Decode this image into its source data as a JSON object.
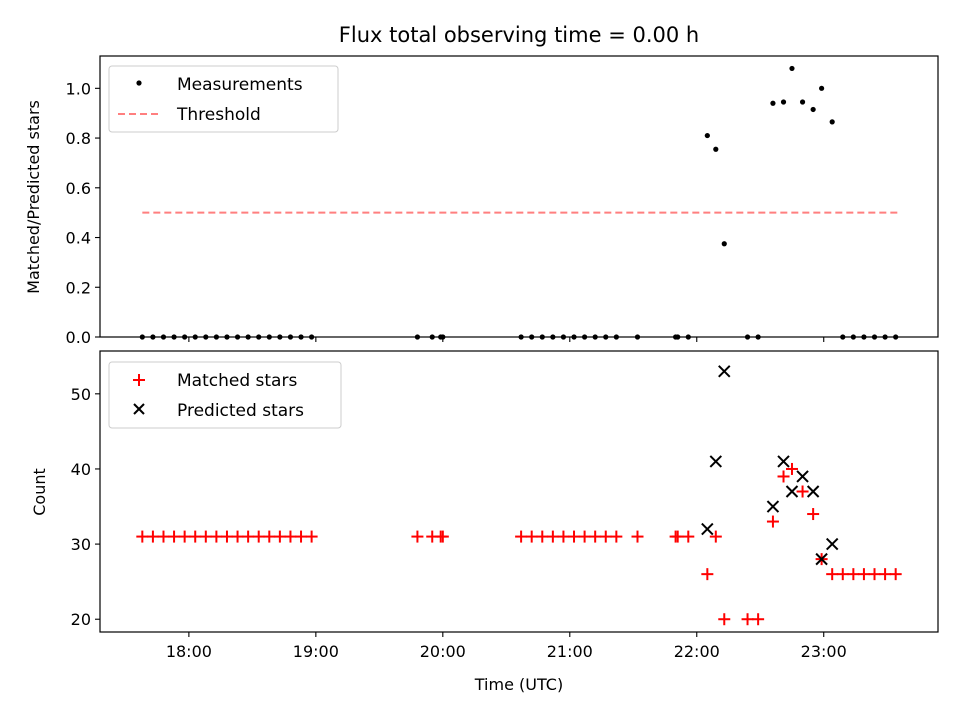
{
  "title": "Flux total observing time = 0.00 h",
  "colors": {
    "measure": "#000000",
    "threshold": "#ff7f7f",
    "matched": "#ff0000",
    "predicted": "#000000"
  },
  "chart_data": [
    {
      "type": "scatter",
      "ylabel": "Matched/Predicted stars",
      "xlim": [
        "17:18",
        "23:54"
      ],
      "ylim": [
        0,
        1.13
      ],
      "yticks": [
        "0.0",
        "0.2",
        "0.4",
        "0.6",
        "0.8",
        "1.0"
      ],
      "ytick_values": [
        0,
        0.2,
        0.4,
        0.6,
        0.8,
        1.0
      ],
      "legend_position": "top-left",
      "threshold": {
        "name": "Threshold",
        "y": 0.5,
        "x_range": [
          "17:38",
          "23:35"
        ]
      },
      "series": [
        {
          "name": "Measurements",
          "points": [
            [
              "17:38",
              0
            ],
            [
              "17:43",
              0
            ],
            [
              "17:48",
              0
            ],
            [
              "17:53",
              0
            ],
            [
              "17:58",
              0
            ],
            [
              "18:03",
              0
            ],
            [
              "18:08",
              0
            ],
            [
              "18:13",
              0
            ],
            [
              "18:18",
              0
            ],
            [
              "18:23",
              0
            ],
            [
              "18:28",
              0
            ],
            [
              "18:33",
              0
            ],
            [
              "18:38",
              0
            ],
            [
              "18:43",
              0
            ],
            [
              "18:48",
              0
            ],
            [
              "18:53",
              0
            ],
            [
              "18:58",
              0
            ],
            [
              "19:48",
              0
            ],
            [
              "19:55",
              0
            ],
            [
              "19:59",
              0
            ],
            [
              "20:00",
              0
            ],
            [
              "20:37",
              0
            ],
            [
              "20:42",
              0
            ],
            [
              "20:47",
              0
            ],
            [
              "20:52",
              0
            ],
            [
              "20:57",
              0
            ],
            [
              "21:02",
              0
            ],
            [
              "21:07",
              0
            ],
            [
              "21:12",
              0
            ],
            [
              "21:17",
              0
            ],
            [
              "21:22",
              0
            ],
            [
              "21:32",
              0
            ],
            [
              "21:50",
              0
            ],
            [
              "21:51",
              0
            ],
            [
              "21:56",
              0
            ],
            [
              "22:05",
              0.81
            ],
            [
              "22:09",
              0.755
            ],
            [
              "22:13",
              0.375
            ],
            [
              "22:24",
              0
            ],
            [
              "22:29",
              0
            ],
            [
              "22:36",
              0.94
            ],
            [
              "22:41",
              0.945
            ],
            [
              "22:45",
              1.08
            ],
            [
              "22:50",
              0.945
            ],
            [
              "22:55",
              0.915
            ],
            [
              "22:59",
              1.0
            ],
            [
              "23:04",
              0.865
            ],
            [
              "23:09",
              0
            ],
            [
              "23:14",
              0
            ],
            [
              "23:19",
              0
            ],
            [
              "23:24",
              0
            ],
            [
              "23:29",
              0
            ],
            [
              "23:34",
              0
            ]
          ]
        }
      ]
    },
    {
      "type": "scatter",
      "ylabel": "Count",
      "xlabel": "Time (UTC)",
      "xlim": [
        "17:18",
        "23:54"
      ],
      "ylim": [
        18.3,
        55.7
      ],
      "yticks": [
        "20",
        "30",
        "40",
        "50"
      ],
      "ytick_values": [
        20,
        30,
        40,
        50
      ],
      "xticks": [
        "18:00",
        "19:00",
        "20:00",
        "21:00",
        "22:00",
        "23:00"
      ],
      "legend_position": "top-left",
      "series": [
        {
          "name": "Matched stars",
          "points": [
            [
              "17:38",
              31
            ],
            [
              "17:43",
              31
            ],
            [
              "17:48",
              31
            ],
            [
              "17:53",
              31
            ],
            [
              "17:58",
              31
            ],
            [
              "18:03",
              31
            ],
            [
              "18:08",
              31
            ],
            [
              "18:13",
              31
            ],
            [
              "18:18",
              31
            ],
            [
              "18:23",
              31
            ],
            [
              "18:28",
              31
            ],
            [
              "18:33",
              31
            ],
            [
              "18:38",
              31
            ],
            [
              "18:43",
              31
            ],
            [
              "18:48",
              31
            ],
            [
              "18:53",
              31
            ],
            [
              "18:58",
              31
            ],
            [
              "19:48",
              31
            ],
            [
              "19:55",
              31
            ],
            [
              "19:59",
              31
            ],
            [
              "20:00",
              31
            ],
            [
              "20:37",
              31
            ],
            [
              "20:42",
              31
            ],
            [
              "20:47",
              31
            ],
            [
              "20:52",
              31
            ],
            [
              "20:57",
              31
            ],
            [
              "21:02",
              31
            ],
            [
              "21:07",
              31
            ],
            [
              "21:12",
              31
            ],
            [
              "21:17",
              31
            ],
            [
              "21:22",
              31
            ],
            [
              "21:32",
              31
            ],
            [
              "21:50",
              31
            ],
            [
              "21:51",
              31
            ],
            [
              "21:56",
              31
            ],
            [
              "22:05",
              26
            ],
            [
              "22:09",
              31
            ],
            [
              "22:13",
              20
            ],
            [
              "22:24",
              20
            ],
            [
              "22:29",
              20
            ],
            [
              "22:36",
              33
            ],
            [
              "22:41",
              39
            ],
            [
              "22:45",
              40
            ],
            [
              "22:50",
              37
            ],
            [
              "22:55",
              34
            ],
            [
              "22:59",
              28
            ],
            [
              "23:04",
              26
            ],
            [
              "23:09",
              26
            ],
            [
              "23:14",
              26
            ],
            [
              "23:19",
              26
            ],
            [
              "23:24",
              26
            ],
            [
              "23:29",
              26
            ],
            [
              "23:34",
              26
            ]
          ]
        },
        {
          "name": "Predicted stars",
          "points": [
            [
              "22:05",
              32
            ],
            [
              "22:09",
              41
            ],
            [
              "22:13",
              53
            ],
            [
              "22:36",
              35
            ],
            [
              "22:41",
              41
            ],
            [
              "22:45",
              37
            ],
            [
              "22:50",
              39
            ],
            [
              "22:55",
              37
            ],
            [
              "22:59",
              28
            ],
            [
              "23:04",
              30
            ]
          ]
        }
      ]
    }
  ]
}
